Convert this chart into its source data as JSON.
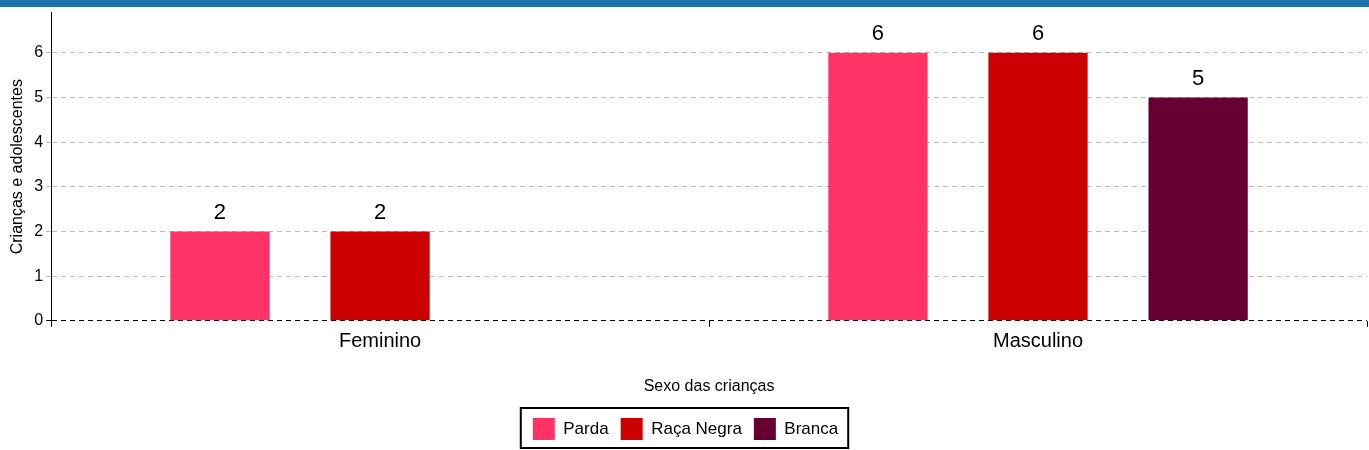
{
  "chart_data": {
    "type": "bar",
    "xlabel": "Sexo das crianças",
    "ylabel": "Crianças e adolescentes",
    "categories": [
      "Feminino",
      "Masculino"
    ],
    "series": [
      {
        "name": "Parda",
        "color": "#ff3366",
        "values": [
          2,
          6
        ]
      },
      {
        "name": "Raça Negra",
        "color": "#cc0000",
        "values": [
          2,
          6
        ]
      },
      {
        "name": "Branca",
        "color": "#660033",
        "values": [
          null,
          5
        ]
      }
    ],
    "ylim": [
      0,
      6.9
    ],
    "yticks": [
      0,
      1,
      2,
      3,
      4,
      5,
      6
    ],
    "grid": "y",
    "legend": "bottom",
    "data_labels": true
  }
}
